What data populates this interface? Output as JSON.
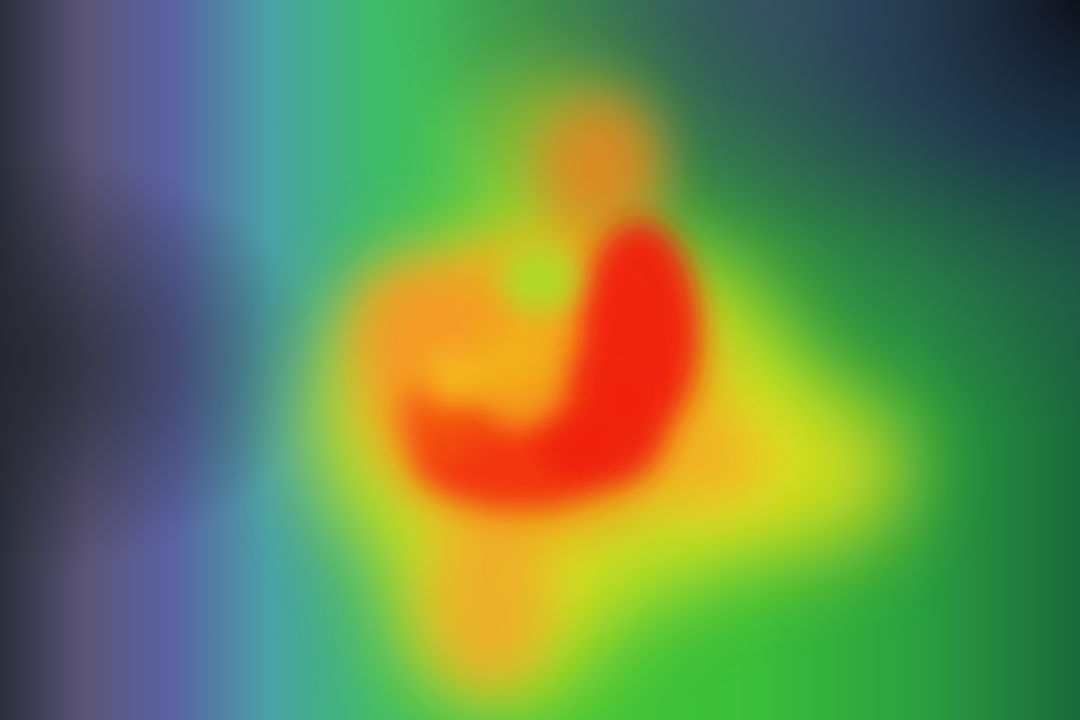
{
  "image": {
    "kind": "heatmap-overlay",
    "colors": {
      "dark_edge_left": "#2a2e3a",
      "purple": "#5b5a9a",
      "teal": "#4aa8a0",
      "green": "#3cc43c",
      "yellow_green": "#b8e020",
      "yellow": "#f2e81a",
      "orange": "#f49a1a",
      "red_orange": "#f4561a",
      "red": "#f01c10",
      "dark_edge_right": "#0c0f18"
    }
  }
}
